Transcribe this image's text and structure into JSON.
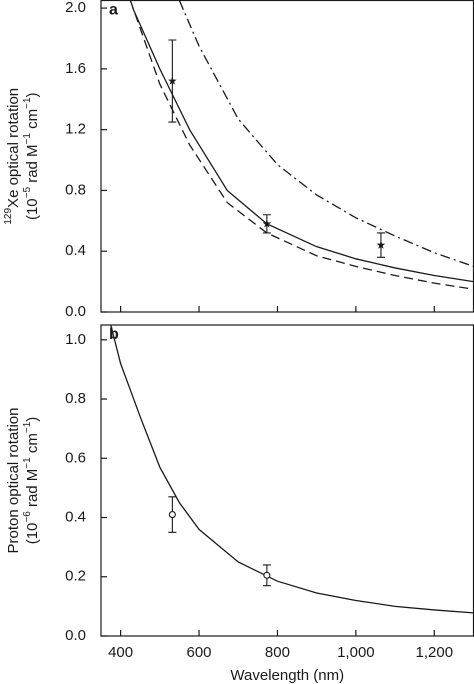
{
  "chart_data": [
    {
      "type": "line",
      "panel_label": "a",
      "ylabel": [
        [
          {
            "text": "129",
            "sup": true
          },
          {
            "text": "Xe optical rotation"
          }
        ],
        [
          {
            "text": "(10"
          },
          {
            "text": "−5",
            "sup": true
          },
          {
            "text": " rad M"
          },
          {
            "text": "−1",
            "sup": true
          },
          {
            "text": " cm"
          },
          {
            "text": "−1",
            "sup": true
          },
          {
            "text": ")"
          }
        ]
      ],
      "xlim": [
        350,
        1300
      ],
      "ylim": [
        0,
        2.05
      ],
      "yticks": [
        {
          "value": 0,
          "label": "0.0"
        },
        0.4,
        0.8,
        1.2,
        1.6,
        {
          "value": 2,
          "label": "2.0"
        }
      ],
      "color": "#1a1a1a",
      "series": [
        {
          "style": "solid",
          "x": [
            431,
            500,
            576,
            672,
            773,
            900,
            1000,
            1100,
            1200,
            1300
          ],
          "values": [
            2.0,
            1.6,
            1.2,
            0.8,
            0.58,
            0.43,
            0.35,
            0.29,
            0.24,
            0.2
          ]
        },
        {
          "style": "dashed",
          "x": [
            425,
            500,
            576,
            672,
            773,
            900,
            1000,
            1100,
            1200,
            1300
          ],
          "values": [
            2.05,
            1.5,
            1.1,
            0.72,
            0.52,
            0.37,
            0.3,
            0.24,
            0.19,
            0.15
          ]
        },
        {
          "style": "dashdot",
          "x": [
            550,
            600,
            700,
            800,
            900,
            1000,
            1100,
            1200,
            1300
          ],
          "values": [
            2.05,
            1.75,
            1.27,
            0.97,
            0.77,
            0.62,
            0.5,
            0.39,
            0.3
          ]
        }
      ],
      "points": {
        "marker": "star",
        "x": [
          532,
          773,
          1064
        ],
        "values": [
          1.52,
          0.58,
          0.44
        ],
        "errors": [
          0.27,
          0.06,
          0.08
        ]
      }
    },
    {
      "type": "line",
      "panel_label": "b",
      "ylabel": [
        [
          {
            "text": "Proton optical rotation"
          }
        ],
        [
          {
            "text": "(10"
          },
          {
            "text": "−6",
            "sup": true
          },
          {
            "text": " rad M"
          },
          {
            "text": "−1",
            "sup": true
          },
          {
            "text": " cm"
          },
          {
            "text": "−1",
            "sup": true
          },
          {
            "text": ")"
          }
        ]
      ],
      "xlabel": "Wavelength (nm)",
      "xlim": [
        350,
        1300
      ],
      "ylim": [
        0,
        1.05
      ],
      "xticks": [
        400,
        600,
        800,
        {
          "value": 1000,
          "label": "1,000"
        },
        {
          "value": 1200,
          "label": "1,200"
        }
      ],
      "yticks": [
        {
          "value": 0,
          "label": "0.0"
        },
        0.2,
        0.4,
        0.6,
        0.8,
        {
          "value": 1,
          "label": "1.0"
        }
      ],
      "color": "#1a1a1a",
      "series": [
        {
          "style": "solid",
          "x": [
            375,
            400,
            450,
            500,
            550,
            600,
            700,
            800,
            900,
            1000,
            1100,
            1200,
            1300
          ],
          "values": [
            1.05,
            0.92,
            0.74,
            0.57,
            0.45,
            0.36,
            0.25,
            0.185,
            0.145,
            0.12,
            0.1,
            0.088,
            0.078
          ]
        }
      ],
      "points": {
        "marker": "circle",
        "x": [
          532,
          773
        ],
        "values": [
          0.41,
          0.205
        ],
        "errors": [
          0.06,
          0.035
        ]
      }
    }
  ]
}
